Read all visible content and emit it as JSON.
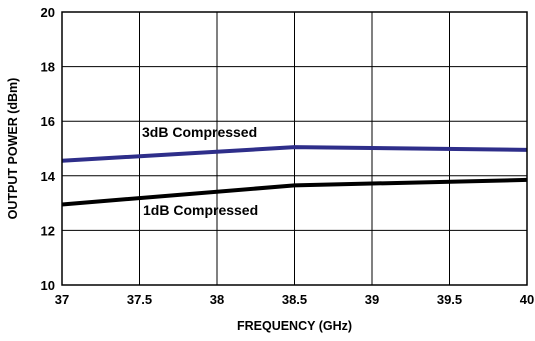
{
  "chart_data": {
    "type": "line",
    "xlabel": "FREQUENCY (GHz)",
    "ylabel": "OUTPUT POWER (dBm)",
    "xlim": [
      37,
      40
    ],
    "ylim": [
      10,
      20
    ],
    "x_ticks": [
      "37",
      "37.5",
      "38",
      "38.5",
      "39",
      "39.5",
      "40"
    ],
    "y_ticks": [
      "10",
      "12",
      "14",
      "16",
      "18",
      "20"
    ],
    "grid": true,
    "series": [
      {
        "name": "3dB Compressed",
        "color": "#2e2e8a",
        "x": [
          37,
          38.5,
          40
        ],
        "y": [
          14.55,
          15.05,
          14.95
        ]
      },
      {
        "name": "1dB Compressed",
        "color": "#000000",
        "x": [
          37,
          38.5,
          40
        ],
        "y": [
          12.95,
          13.65,
          13.85
        ]
      }
    ]
  }
}
